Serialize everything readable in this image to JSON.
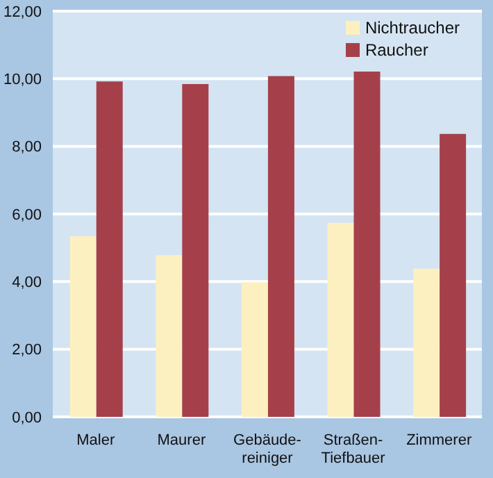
{
  "chart_data": {
    "type": "bar",
    "categories": [
      "Maler",
      "Maurer",
      "Gebäude-\nreiniger",
      "Straßen-\nTiefbauer",
      "Zimmerer"
    ],
    "series": [
      {
        "name": "Nichtraucher",
        "color": "#fdf0c0",
        "values": [
          5.34,
          4.78,
          3.98,
          5.74,
          4.38
        ]
      },
      {
        "name": "Raucher",
        "color": "#a5404a",
        "values": [
          9.92,
          9.84,
          10.08,
          10.21,
          8.37
        ]
      }
    ],
    "ylim": [
      0,
      12
    ],
    "yticks": [
      {
        "value": 0,
        "label": "0,00"
      },
      {
        "value": 2,
        "label": "2,00"
      },
      {
        "value": 4,
        "label": "4,00"
      },
      {
        "value": 6,
        "label": "6,00"
      },
      {
        "value": 8,
        "label": "8,00"
      },
      {
        "value": 10,
        "label": "10,00"
      },
      {
        "value": 12,
        "label": "12,00"
      }
    ],
    "grid": "y",
    "legend": "top right"
  }
}
